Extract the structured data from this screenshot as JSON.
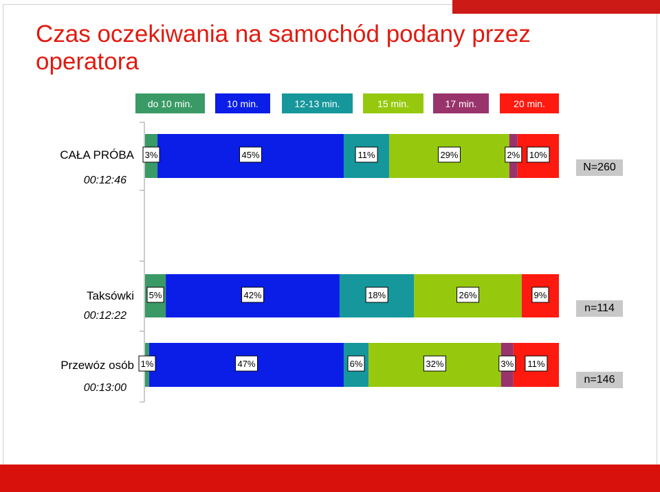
{
  "title": "Czas oczekiwania na samochód podany przez operatora",
  "legend": [
    {
      "label": "do 10 min.",
      "color": "#3a9a66"
    },
    {
      "label": "10 min.",
      "color": "#0a1ee8"
    },
    {
      "label": "12-13 min.",
      "color": "#16979c"
    },
    {
      "label": "15 min.",
      "color": "#96c90e"
    },
    {
      "label": "17 min.",
      "color": "#99336b"
    },
    {
      "label": "20 min.",
      "color": "#ff1a10"
    }
  ],
  "chart_data": {
    "type": "bar",
    "orientation": "horizontal",
    "stacked": "percent",
    "legend_position": "top",
    "categories": [
      "CAŁA PRÓBA",
      "Taksówki",
      "Przewóz osób"
    ],
    "average_times": [
      "00:12:46",
      "00:12:22",
      "00:13:00"
    ],
    "sample_sizes": [
      "N=260",
      "n=114",
      "n=146"
    ],
    "series": [
      {
        "name": "do 10 min.",
        "values": [
          3,
          5,
          1
        ],
        "labels": [
          "3%",
          "5%",
          "1%"
        ]
      },
      {
        "name": "10 min.",
        "values": [
          45,
          42,
          47
        ],
        "labels": [
          "45%",
          "42%",
          "47%"
        ]
      },
      {
        "name": "12-13 min.",
        "values": [
          11,
          18,
          6
        ],
        "labels": [
          "11%",
          "18%",
          "6%"
        ]
      },
      {
        "name": "15 min.",
        "values": [
          29,
          26,
          32
        ],
        "labels": [
          "29%",
          "26%",
          "32%"
        ]
      },
      {
        "name": "17 min.",
        "values": [
          2,
          0,
          3
        ],
        "labels": [
          "2%",
          "",
          "3%"
        ]
      },
      {
        "name": "20 min.",
        "values": [
          10,
          9,
          11
        ],
        "labels": [
          "10%",
          "9%",
          "11%"
        ]
      }
    ],
    "xlim": [
      0,
      100
    ]
  }
}
